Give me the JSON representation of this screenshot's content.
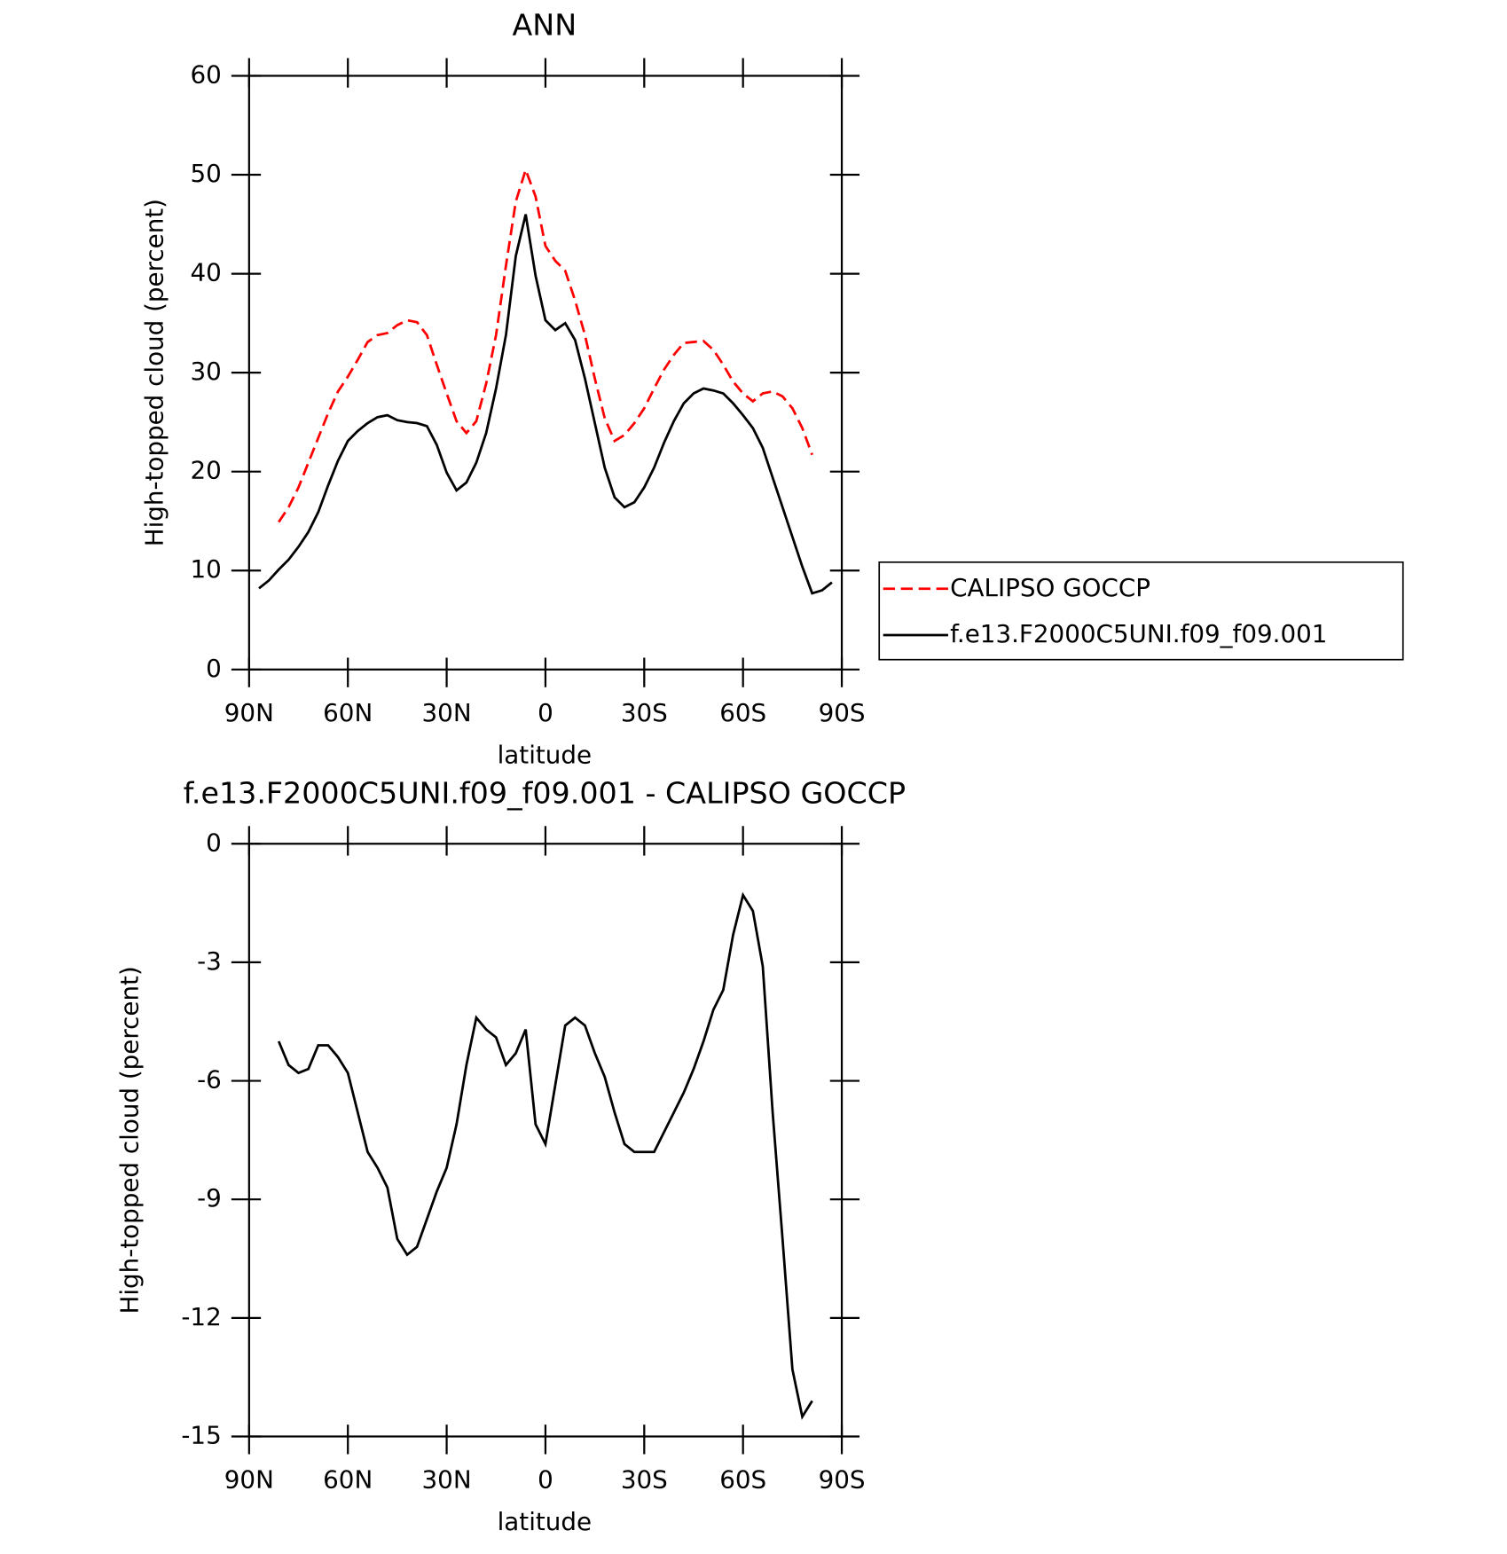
{
  "chart_data": [
    {
      "type": "line",
      "title": "ANN",
      "xlabel": "latitude",
      "ylabel": "High-topped cloud (percent)",
      "x": [
        87,
        84,
        81,
        78,
        75,
        72,
        69,
        66,
        63,
        60,
        57,
        54,
        51,
        48,
        45,
        42,
        39,
        36,
        33,
        30,
        27,
        24,
        21,
        18,
        15,
        12,
        9,
        6,
        3,
        0,
        -3,
        -6,
        -9,
        -12,
        -15,
        -18,
        -21,
        -24,
        -27,
        -30,
        -33,
        -36,
        -39,
        -42,
        -45,
        -48,
        -51,
        -54,
        -57,
        -60,
        -63,
        -66,
        -69,
        -72,
        -75,
        -78,
        -81,
        -84,
        -87
      ],
      "xlim": [
        90,
        -90
      ],
      "xticks": [
        {
          "value": 90,
          "label": "90N"
        },
        {
          "value": 60,
          "label": "60N"
        },
        {
          "value": 30,
          "label": "30N"
        },
        0,
        {
          "value": -30,
          "label": "30S"
        },
        {
          "value": -60,
          "label": "60S"
        },
        {
          "value": -90,
          "label": "90S"
        }
      ],
      "ylim": [
        0,
        60
      ],
      "yticks": [
        0,
        10,
        20,
        30,
        40,
        50,
        60
      ],
      "legend": "outside-right",
      "series": [
        {
          "name": "CALIPSO GOCCP",
          "color": "#ff0000",
          "dash": true,
          "values": [
            null,
            null,
            14.9,
            16.4,
            18.4,
            20.9,
            23.4,
            25.9,
            28.1,
            29.6,
            31.3,
            33.1,
            33.8,
            34.0,
            34.8,
            35.3,
            35.1,
            33.8,
            30.8,
            27.9,
            25.1,
            23.9,
            25.1,
            28.9,
            33.8,
            40.8,
            47.3,
            50.5,
            47.8,
            42.8,
            41.3,
            40.3,
            37.3,
            33.8,
            29.4,
            25.4,
            23.1,
            23.7,
            24.9,
            26.4,
            28.4,
            30.3,
            31.8,
            33.0,
            33.1,
            33.2,
            32.3,
            30.8,
            29.1,
            27.9,
            27.1,
            27.9,
            28.1,
            27.6,
            26.4,
            24.4,
            21.7,
            null,
            null
          ]
        },
        {
          "name": "f.e13.F2000C5UNI.f09_f09.001",
          "color": "#000000",
          "dash": false,
          "values": [
            8.2,
            9.0,
            10.1,
            11.1,
            12.4,
            13.9,
            15.9,
            18.6,
            21.1,
            23.1,
            24.1,
            24.9,
            25.5,
            25.7,
            25.2,
            25.0,
            24.9,
            24.6,
            22.7,
            19.9,
            18.1,
            18.9,
            20.9,
            23.9,
            28.4,
            33.8,
            41.8,
            46.0,
            39.8,
            35.3,
            34.3,
            35.0,
            33.3,
            29.4,
            24.9,
            20.4,
            17.4,
            16.4,
            16.9,
            18.4,
            20.4,
            22.9,
            25.1,
            26.9,
            27.9,
            28.4,
            28.2,
            27.9,
            26.9,
            25.7,
            24.4,
            22.4,
            19.4,
            16.4,
            13.4,
            10.4,
            7.7,
            8.0,
            8.8
          ]
        }
      ]
    },
    {
      "type": "line",
      "title": "f.e13.F2000C5UNI.f09_f09.001 - CALIPSO GOCCP",
      "xlabel": "latitude",
      "ylabel": "High-topped cloud (percent)",
      "x": [
        87,
        84,
        81,
        78,
        75,
        72,
        69,
        66,
        63,
        60,
        57,
        54,
        51,
        48,
        45,
        42,
        39,
        36,
        33,
        30,
        27,
        24,
        21,
        18,
        15,
        12,
        9,
        6,
        3,
        0,
        -3,
        -6,
        -9,
        -12,
        -15,
        -18,
        -21,
        -24,
        -27,
        -30,
        -33,
        -36,
        -39,
        -42,
        -45,
        -48,
        -51,
        -54,
        -57,
        -60,
        -63,
        -66,
        -69,
        -72,
        -75,
        -78,
        -81,
        -84,
        -87
      ],
      "xlim": [
        90,
        -90
      ],
      "xticks": [
        {
          "value": 90,
          "label": "90N"
        },
        {
          "value": 60,
          "label": "60N"
        },
        {
          "value": 30,
          "label": "30N"
        },
        0,
        {
          "value": -30,
          "label": "30S"
        },
        {
          "value": -60,
          "label": "60S"
        },
        {
          "value": -90,
          "label": "90S"
        }
      ],
      "ylim": [
        -15,
        0
      ],
      "yticks": [
        -15,
        -12,
        -9,
        -6,
        -3,
        0
      ],
      "series": [
        {
          "color": "#000000",
          "dash": false,
          "values": [
            null,
            null,
            -5.0,
            -5.6,
            -5.8,
            -5.7,
            -5.1,
            -5.1,
            -5.4,
            -5.8,
            -6.8,
            -7.8,
            -8.2,
            -8.7,
            -10.0,
            -10.4,
            -10.2,
            -9.5,
            -8.8,
            -8.2,
            -7.1,
            -5.6,
            -4.4,
            -4.7,
            -4.9,
            -5.6,
            -5.3,
            -4.7,
            -7.1,
            -7.6,
            -6.1,
            -4.6,
            -4.4,
            -4.6,
            -5.3,
            -5.9,
            -6.8,
            -7.6,
            -7.8,
            -7.8,
            -7.8,
            -7.3,
            -6.8,
            -6.3,
            -5.7,
            -5.0,
            -4.2,
            -3.7,
            -2.3,
            -1.3,
            -1.7,
            -3.1,
            -6.8,
            -10.0,
            -13.3,
            -14.5,
            -14.1,
            null,
            null
          ]
        }
      ]
    }
  ]
}
